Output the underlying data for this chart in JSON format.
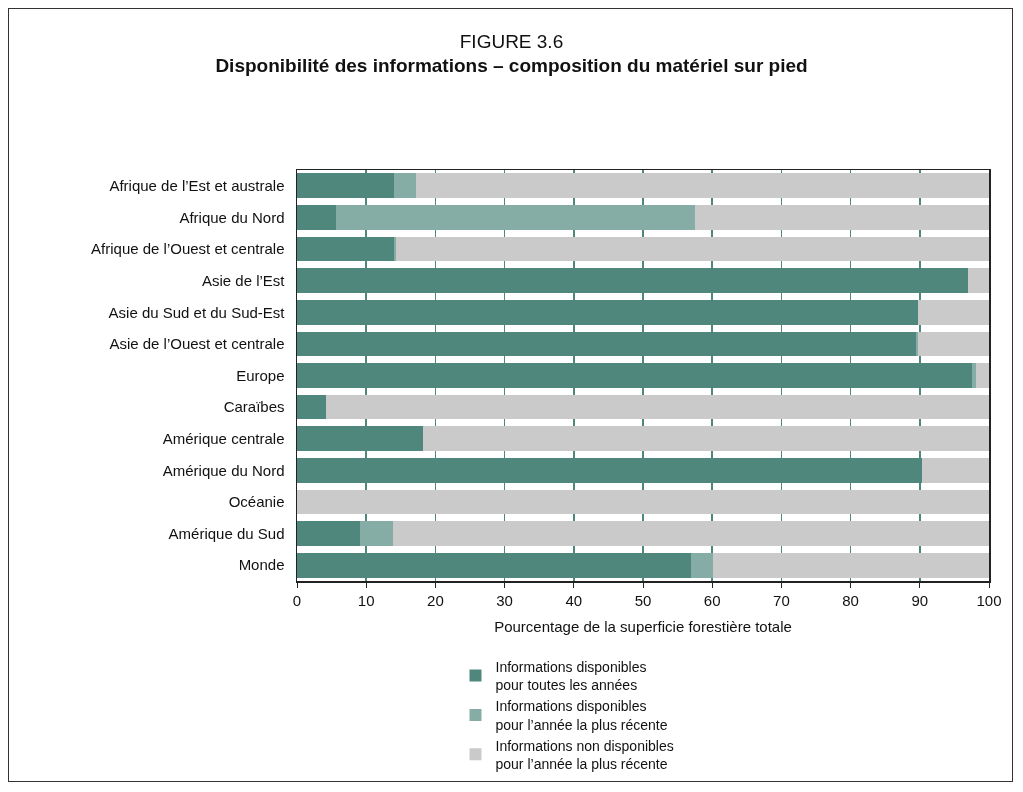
{
  "chart_data": {
    "type": "bar",
    "orientation": "horizontal",
    "stacked": true,
    "title": "FIGURE 3.6",
    "subtitle": "Disponibilité des informations – composition du matériel sur pied",
    "xlabel": "Pourcentage de la superficie forestière totale",
    "categories": [
      "Afrique de l’Est et australe",
      "Afrique du Nord",
      "Afrique de l’Ouest et centrale",
      "Asie de l’Est",
      "Asie du Sud et du Sud-Est",
      "Asie de l’Ouest et centrale",
      "Europe",
      "Caraïbes",
      "Amérique centrale",
      "Amérique du Nord",
      "Océanie",
      "Amérique du Sud",
      "Monde"
    ],
    "series": [
      {
        "name": "Informations disponibles\npour toutes les années",
        "color": "#4f877d",
        "values": [
          14,
          5.6,
          14,
          97,
          89.7,
          89.5,
          97.5,
          4.2,
          18.2,
          90.3,
          0,
          9.1,
          57
        ]
      },
      {
        "name": "Informations disponibles\npour l’année la plus récente",
        "color": "#86ada5",
        "values": [
          3.2,
          51.9,
          0.3,
          0,
          0,
          0.2,
          0.6,
          0,
          0,
          0,
          0,
          4.8,
          3.1
        ]
      },
      {
        "name": "Informations non disponibles\npour l’année la plus récente",
        "color": "#cacaca",
        "values": [
          82.8,
          42.5,
          85.7,
          3,
          10.3,
          10.3,
          1.9,
          95.8,
          81.8,
          9.7,
          100,
          86.1,
          39.9
        ]
      }
    ],
    "xlim": [
      0,
      100
    ],
    "xticks": [
      0,
      10,
      20,
      30,
      40,
      50,
      60,
      70,
      80,
      90,
      100
    ],
    "grid": "x",
    "legend": "bottom"
  }
}
